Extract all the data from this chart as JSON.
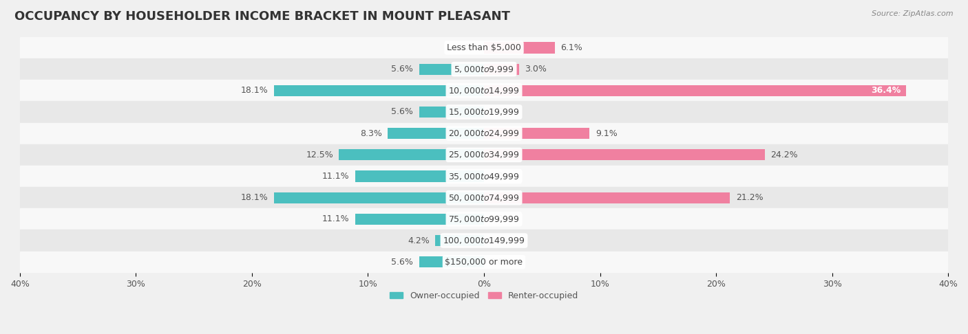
{
  "title": "OCCUPANCY BY HOUSEHOLDER INCOME BRACKET IN MOUNT PLEASANT",
  "source": "Source: ZipAtlas.com",
  "categories": [
    "Less than $5,000",
    "$5,000 to $9,999",
    "$10,000 to $14,999",
    "$15,000 to $19,999",
    "$20,000 to $24,999",
    "$25,000 to $34,999",
    "$35,000 to $49,999",
    "$50,000 to $74,999",
    "$75,000 to $99,999",
    "$100,000 to $149,999",
    "$150,000 or more"
  ],
  "owner_values": [
    0.0,
    5.6,
    18.1,
    5.6,
    8.3,
    12.5,
    11.1,
    18.1,
    11.1,
    4.2,
    5.6
  ],
  "renter_values": [
    6.1,
    3.0,
    36.4,
    0.0,
    9.1,
    24.2,
    0.0,
    21.2,
    0.0,
    0.0,
    0.0
  ],
  "owner_color": "#4BBFBF",
  "renter_color": "#F080A0",
  "owner_label": "Owner-occupied",
  "renter_label": "Renter-occupied",
  "xlim": 40.0,
  "bar_height": 0.52,
  "background_color": "#f0f0f0",
  "row_bg_colors": [
    "#f8f8f8",
    "#e8e8e8"
  ],
  "title_fontsize": 13,
  "label_fontsize": 9,
  "category_fontsize": 9,
  "axis_label_fontsize": 9,
  "text_color": "#555555",
  "title_color": "#333333",
  "source_color": "#888888"
}
